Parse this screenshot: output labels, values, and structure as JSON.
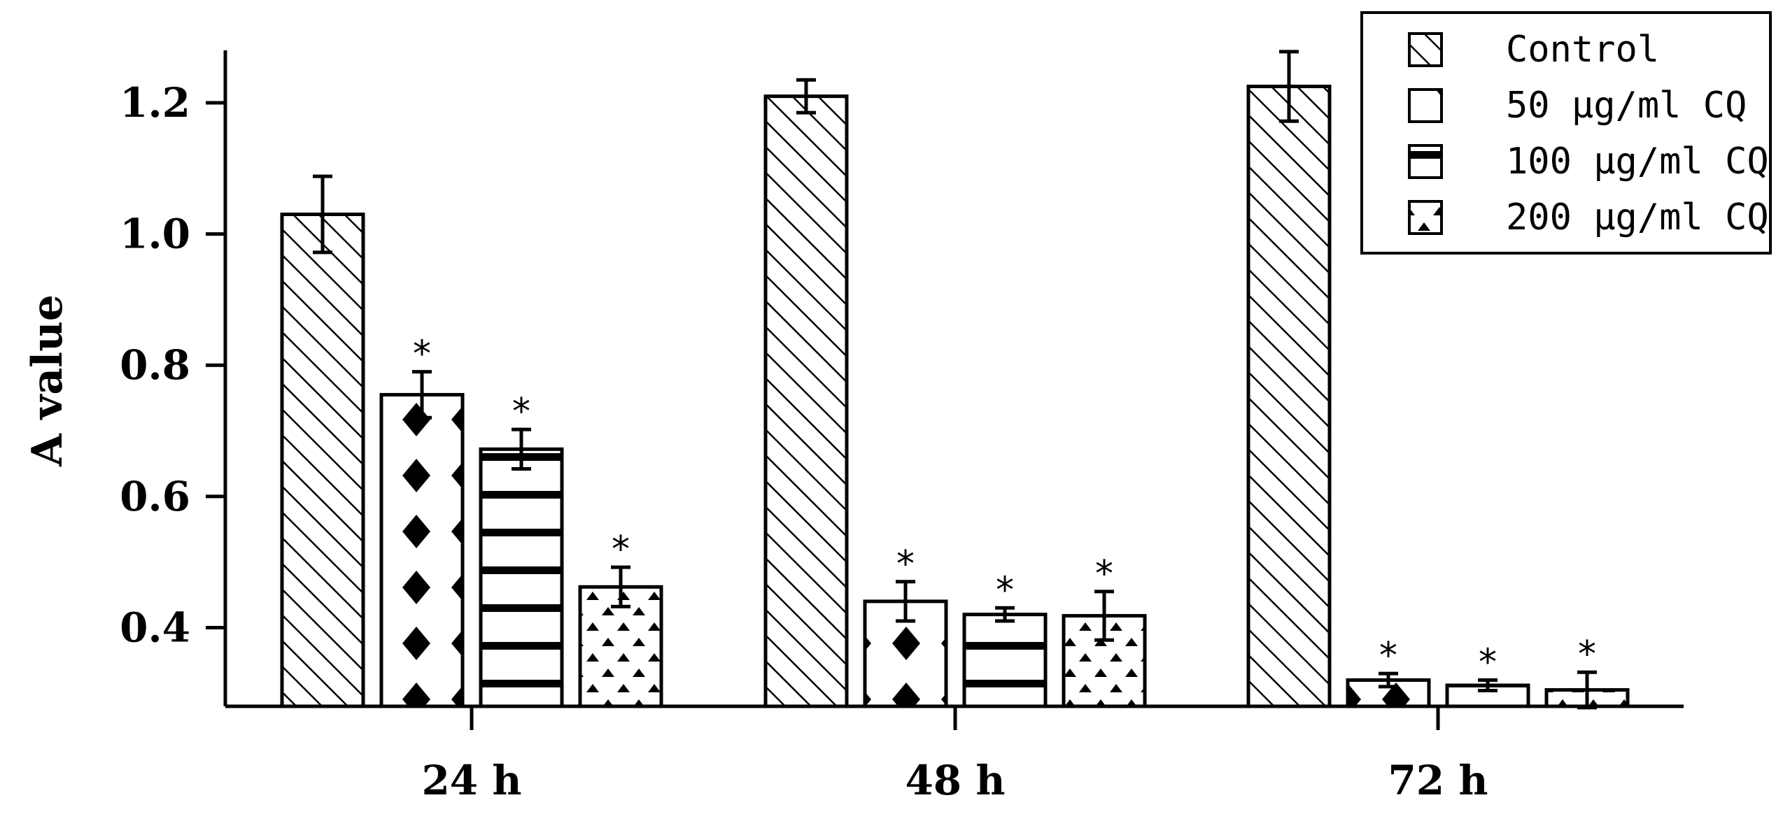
{
  "chart_data": {
    "type": "bar",
    "title": "",
    "xlabel": "",
    "ylabel": "A value",
    "ylim": [
      0.28,
      1.28
    ],
    "yticks": [
      0.4,
      0.6,
      0.8,
      1.0,
      1.2
    ],
    "ytick_labels": [
      "0.4",
      "0.6",
      "0.8",
      "1.0",
      "1.2"
    ],
    "categories": [
      "24 h",
      "48 h",
      "72 h"
    ],
    "grid": false,
    "legend_position": "top-right",
    "significance_marker": "*",
    "series": [
      {
        "name": "Control",
        "pattern": "diagonal-hatch",
        "values": [
          1.03,
          1.21,
          1.225
        ],
        "errors": [
          0.058,
          0.025,
          0.053
        ],
        "significant": [
          false,
          false,
          false
        ]
      },
      {
        "name": "50 μg/ml CQ",
        "pattern": "diamonds",
        "values": [
          0.755,
          0.44,
          0.32
        ],
        "errors": [
          0.035,
          0.03,
          0.01
        ],
        "significant": [
          true,
          true,
          true
        ]
      },
      {
        "name": "100 μg/ml CQ",
        "pattern": "horizontal-stripes",
        "values": [
          0.672,
          0.42,
          0.312
        ],
        "errors": [
          0.03,
          0.01,
          0.008
        ],
        "significant": [
          true,
          true,
          true
        ]
      },
      {
        "name": "200 μg/ml CQ",
        "pattern": "triangles",
        "values": [
          0.462,
          0.418,
          0.305
        ],
        "errors": [
          0.03,
          0.037,
          0.027
        ],
        "significant": [
          true,
          true,
          true
        ]
      }
    ],
    "colors": {
      "stroke": "#000000",
      "fill": "#ffffff"
    }
  }
}
